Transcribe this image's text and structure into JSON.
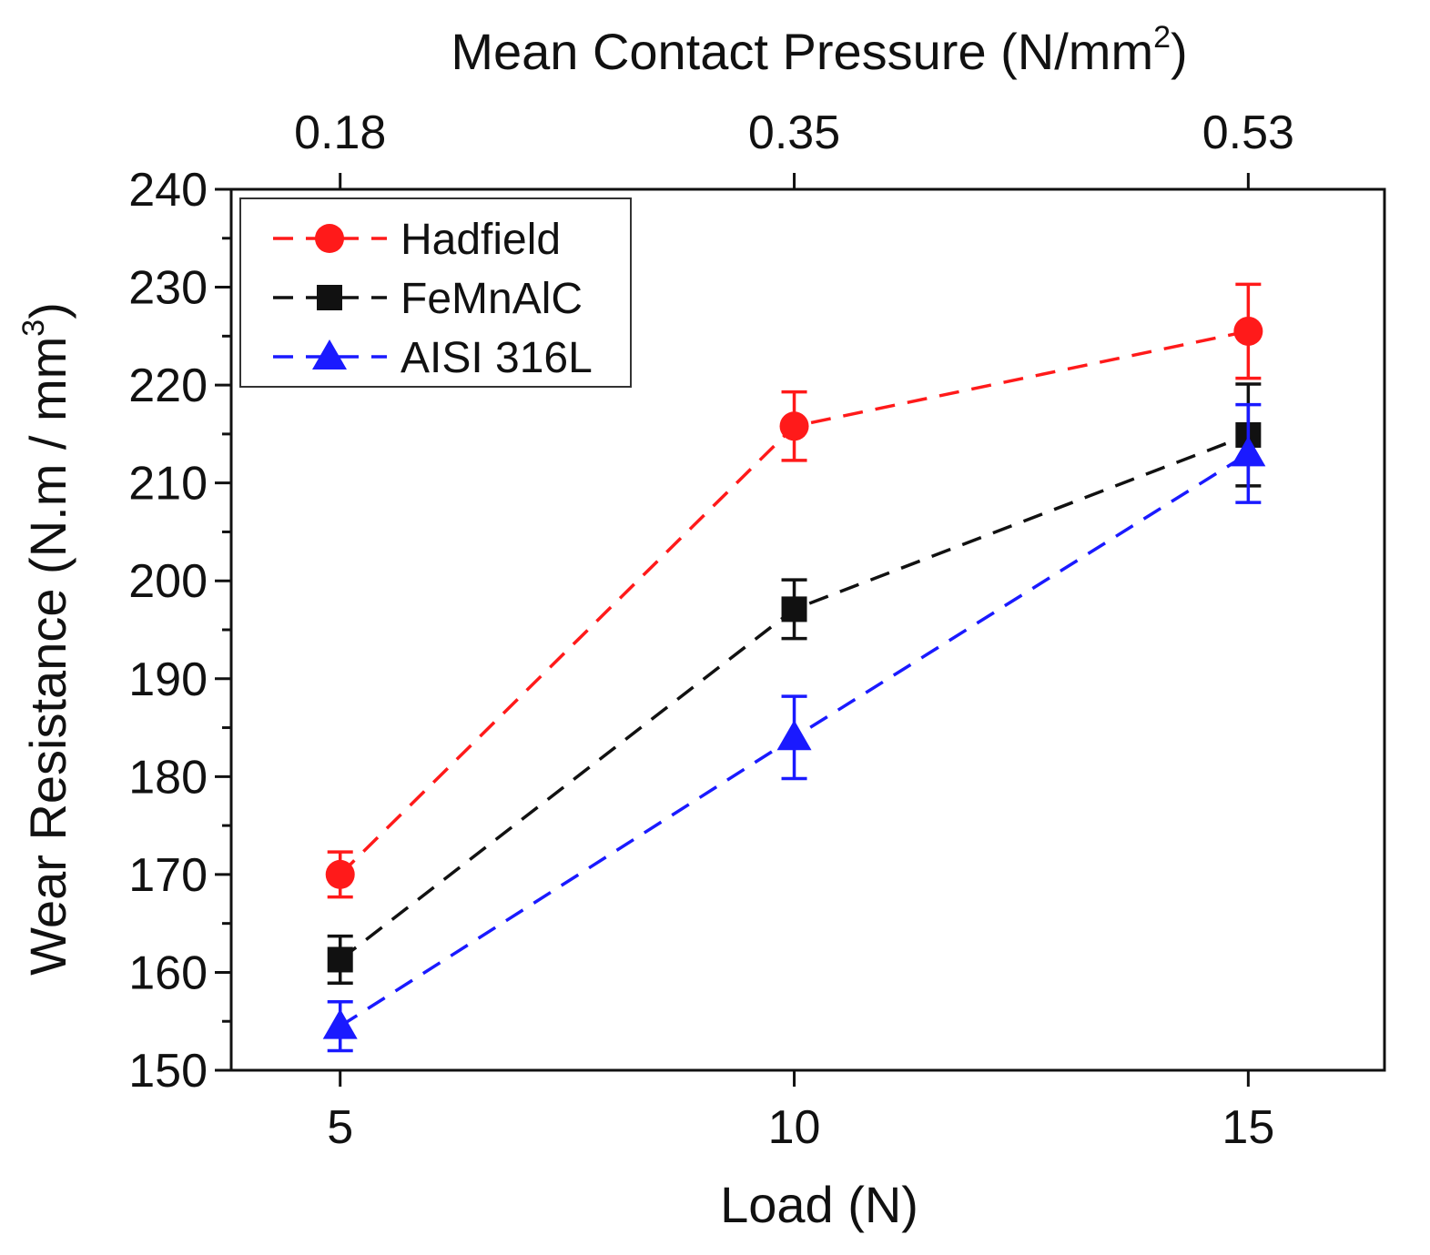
{
  "chart_data": {
    "type": "line",
    "title": "",
    "xlabel": "Load (N)",
    "ylabel": "Wear Resistance (N.m / mm",
    "ylabel_sup": "3",
    "ylabel_close": ")",
    "x2label": "Mean Contact Pressure (N/mm",
    "x2label_sup": "2",
    "x2label_close": ")",
    "x": [
      5,
      10,
      15
    ],
    "x_tick_labels": [
      "5",
      "10",
      "15"
    ],
    "x2_tick_labels": [
      "0.18",
      "0.35",
      "0.53"
    ],
    "xlim": [
      3.8,
      16.5
    ],
    "ylim": [
      150,
      240
    ],
    "y_ticks": [
      150,
      160,
      170,
      180,
      190,
      200,
      210,
      220,
      230,
      240
    ],
    "series": [
      {
        "name": "Hadfield",
        "color": "#ff1a1a",
        "marker": "circle",
        "values": [
          170,
          215.8,
          225.5
        ],
        "errors": [
          2.3,
          3.5,
          4.8
        ]
      },
      {
        "name": "FeMnAlC",
        "color": "#111111",
        "marker": "square",
        "values": [
          161.3,
          197.1,
          214.9
        ],
        "errors": [
          2.4,
          3.0,
          5.2
        ]
      },
      {
        "name": "AISI 316L",
        "color": "#1a1aff",
        "marker": "triangle",
        "values": [
          154.5,
          184,
          213
        ],
        "errors": [
          2.5,
          4.2,
          5.0
        ]
      }
    ],
    "legend_position": "top-left",
    "grid": false
  }
}
